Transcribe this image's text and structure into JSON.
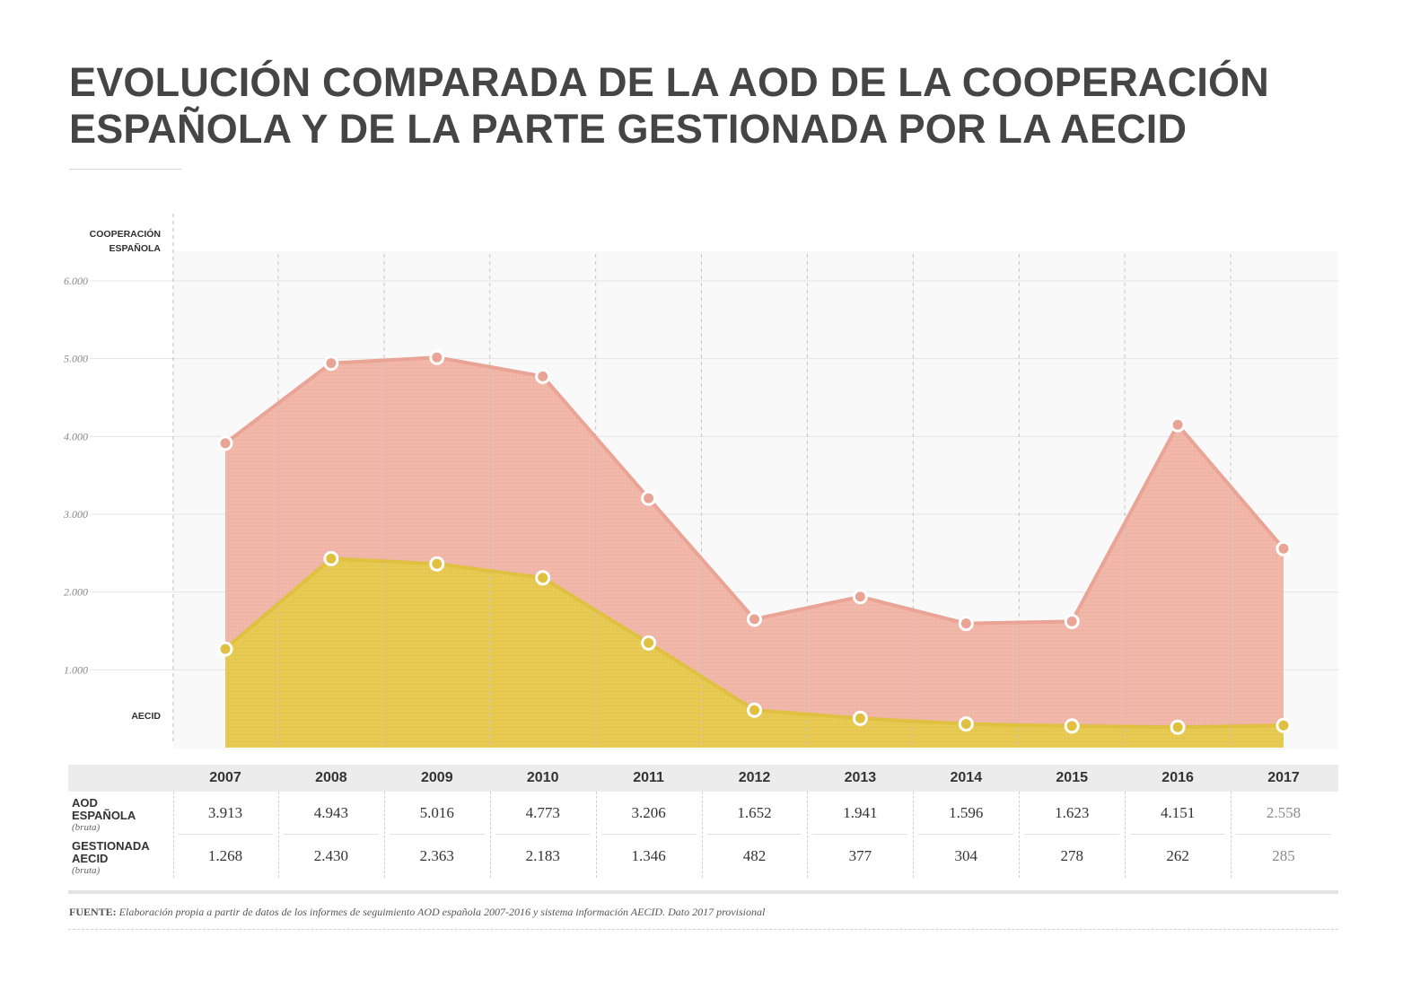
{
  "title": {
    "line1": "EVOLUCIÓN COMPARADA DE LA AOD DE LA COOPERACIÓN",
    "line2": "ESPAÑOLA Y DE LA PARTE GESTIONADA POR LA AECID"
  },
  "chart_data": {
    "type": "area",
    "x": [
      "2007",
      "2008",
      "2009",
      "2010",
      "2011",
      "2012",
      "2013",
      "2014",
      "2015",
      "2016",
      "2017"
    ],
    "ylim": [
      0,
      6300
    ],
    "ytick_labels": [
      "1.000",
      "2.000",
      "3.000",
      "4.000",
      "5.000",
      "6.000"
    ],
    "ytick_values": [
      1000,
      2000,
      3000,
      4000,
      5000,
      6000
    ],
    "grid": true,
    "series": [
      {
        "name": "COOPERACIÓN ESPAÑOLA",
        "color": "#f0b4a6",
        "line_color": "#e9a495",
        "values": [
          3913,
          4943,
          5016,
          4773,
          3206,
          1652,
          1941,
          1596,
          1623,
          4151,
          2558
        ]
      },
      {
        "name": "AECID",
        "color": "#e6c74d",
        "line_color": "#e0c040",
        "values": [
          1268,
          2430,
          2363,
          2183,
          1346,
          482,
          377,
          304,
          278,
          262,
          285
        ]
      }
    ],
    "label_top_line1": "COOPERACIÓN",
    "label_top_line2": "ESPAÑOLA",
    "label_bottom": "AECID"
  },
  "table": {
    "years": [
      "2007",
      "2008",
      "2009",
      "2010",
      "2011",
      "2012",
      "2013",
      "2014",
      "2015",
      "2016",
      "2017"
    ],
    "rows": [
      {
        "label_line1": "AOD",
        "label_line2": "ESPAÑOLA",
        "label_sub": "(bruta)",
        "values": [
          "3.913",
          "4.943",
          "5.016",
          "4.773",
          "3.206",
          "1.652",
          "1.941",
          "1.596",
          "1.623",
          "4.151",
          "2.558"
        ]
      },
      {
        "label_line1": "GESTIONADA",
        "label_line2": "AECID",
        "label_sub": "(bruta)",
        "values": [
          "1.268",
          "2.430",
          "2.363",
          "2.183",
          "1.346",
          "482",
          "377",
          "304",
          "278",
          "262",
          "285"
        ]
      }
    ]
  },
  "source": {
    "label": "FUENTE:",
    "text": "Elaboración propia a partir de datos de los informes de seguimiento AOD española 2007-2016 y sistema información AECID. Dato 2017 provisional"
  }
}
